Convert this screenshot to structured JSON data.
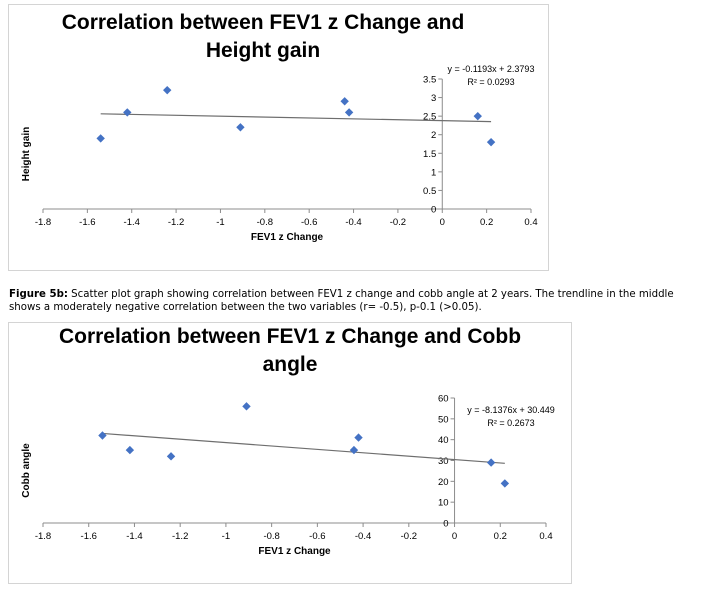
{
  "caption": {
    "label": "Figure 5b:",
    "text": " Scatter plot graph showing correlation between FEV1 z change and cobb angle at 2 years. The trendline in the middle shows a moderately negative correlation between the two variables (r= -0.5), p-0.1 (>0.05)."
  },
  "chart_data": [
    {
      "type": "scatter",
      "title": "Correlation between FEV1 z Change and Height gain",
      "title_lines": [
        "Correlation between FEV1 z Change and",
        "Height gain"
      ],
      "xlabel": "FEV1 z Change",
      "ylabel": "Height gain",
      "xlim": [
        -1.8,
        0.4
      ],
      "ylim": [
        0,
        3.5
      ],
      "xticks": [
        -1.8,
        -1.6,
        -1.4,
        -1.2,
        -1,
        -0.8,
        -0.6,
        -0.4,
        -0.2,
        0,
        0.2,
        0.4
      ],
      "xtick_labels": [
        "-1.8",
        "-1.6",
        "-1.4",
        "-1.2",
        "-1",
        "-0.8",
        "-0.6",
        "-0.4",
        "-0.2",
        "0",
        "0.2",
        "0.4"
      ],
      "yticks": [
        0,
        0.5,
        1,
        1.5,
        2,
        2.5,
        3,
        3.5
      ],
      "ytick_labels": [
        "0",
        "0.5",
        "1",
        "1.5",
        "2",
        "2.5",
        "3",
        "3.5"
      ],
      "points": [
        {
          "x": -1.54,
          "y": 1.9
        },
        {
          "x": -1.42,
          "y": 2.6
        },
        {
          "x": -1.24,
          "y": 3.2
        },
        {
          "x": -0.91,
          "y": 2.2
        },
        {
          "x": -0.44,
          "y": 2.9
        },
        {
          "x": -0.42,
          "y": 2.6
        },
        {
          "x": 0.16,
          "y": 2.5
        },
        {
          "x": 0.22,
          "y": 1.8
        }
      ],
      "trendline": {
        "slope": -0.1193,
        "intercept": 2.3793,
        "x_range": [
          -1.54,
          0.22
        ]
      },
      "equation": "y = -0.1193x + 2.3793",
      "r_squared": "R² = 0.0293",
      "grid": false,
      "marker_color": "#4472c4",
      "line_color": "#6e6e6e"
    },
    {
      "type": "scatter",
      "title": "Correlation between FEV1 z Change and Cobb angle",
      "title_lines": [
        "Correlation between FEV1 z Change and Cobb",
        "angle"
      ],
      "xlabel": "FEV1 z Change",
      "ylabel": "Cobb angle",
      "xlim": [
        -1.8,
        0.4
      ],
      "ylim": [
        0,
        60
      ],
      "xticks": [
        -1.8,
        -1.6,
        -1.4,
        -1.2,
        -1,
        -0.8,
        -0.6,
        -0.4,
        -0.2,
        0,
        0.2,
        0.4
      ],
      "xtick_labels": [
        "-1.8",
        "-1.6",
        "-1.4",
        "-1.2",
        "-1",
        "-0.8",
        "-0.6",
        "-0.4",
        "-0.2",
        "0",
        "0.2",
        "0.4"
      ],
      "yticks": [
        0,
        10,
        20,
        30,
        40,
        50,
        60
      ],
      "ytick_labels": [
        "0",
        "10",
        "20",
        "30",
        "40",
        "50",
        "60"
      ],
      "points": [
        {
          "x": -1.54,
          "y": 42
        },
        {
          "x": -1.42,
          "y": 35
        },
        {
          "x": -1.24,
          "y": 32
        },
        {
          "x": -0.91,
          "y": 56
        },
        {
          "x": -0.44,
          "y": 35
        },
        {
          "x": -0.42,
          "y": 41
        },
        {
          "x": 0.16,
          "y": 29
        },
        {
          "x": 0.22,
          "y": 19
        }
      ],
      "trendline": {
        "slope": -8.1376,
        "intercept": 30.449,
        "x_range": [
          -1.54,
          0.22
        ]
      },
      "equation": "y = -8.1376x + 30.449",
      "r_squared": "R² = 0.2673",
      "grid": false,
      "marker_color": "#4472c4",
      "line_color": "#6e6e6e"
    }
  ]
}
